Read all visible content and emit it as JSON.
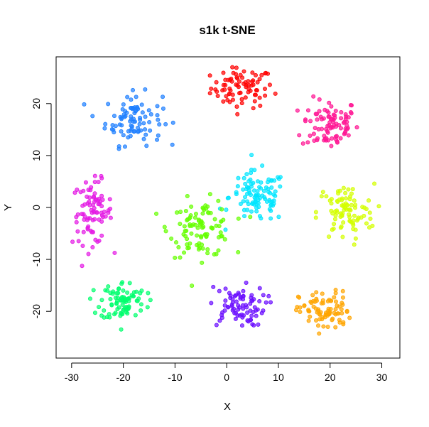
{
  "chart_data": {
    "type": "scatter",
    "title": "s1k t-SNE",
    "xlabel": "X",
    "ylabel": "Y",
    "xlim": [
      -33,
      33.5
    ],
    "ylim": [
      -29,
      29
    ],
    "xticks": [
      -30,
      -20,
      -10,
      0,
      10,
      20,
      30
    ],
    "yticks": [
      -20,
      -10,
      0,
      10,
      20
    ],
    "grid": false,
    "legend": "none",
    "series": [
      {
        "color": "#ff0000",
        "center": [
          3,
          23
        ],
        "spread": [
          5.5,
          3.5
        ],
        "count": 80
      },
      {
        "color": "#ff1493",
        "center": [
          20,
          16
        ],
        "spread": [
          5,
          4.5
        ],
        "count": 90
      },
      {
        "color": "#1e7fff",
        "center": [
          -18,
          17
        ],
        "spread": [
          5,
          4.5
        ],
        "count": 90
      },
      {
        "color": "#e41ae4",
        "center": [
          -26,
          -1
        ],
        "spread": [
          3.5,
          5.5
        ],
        "count": 85
      },
      {
        "color": "#00e5ff",
        "center": [
          6,
          2
        ],
        "spread": [
          5,
          4.5
        ],
        "count": 100
      },
      {
        "color": "#66ff00",
        "center": [
          -5,
          -4
        ],
        "spread": [
          5.5,
          5
        ],
        "count": 100
      },
      {
        "color": "#d4ff00",
        "center": [
          23,
          -1
        ],
        "spread": [
          5,
          5
        ],
        "count": 90
      },
      {
        "color": "#00ff6e",
        "center": [
          -20,
          -18
        ],
        "spread": [
          4,
          3.5
        ],
        "count": 85
      },
      {
        "color": "#6a0dff",
        "center": [
          2,
          -19
        ],
        "spread": [
          5,
          3.5
        ],
        "count": 80
      },
      {
        "color": "#ffa500",
        "center": [
          19,
          -20
        ],
        "spread": [
          4.5,
          3.5
        ],
        "count": 85
      }
    ]
  }
}
